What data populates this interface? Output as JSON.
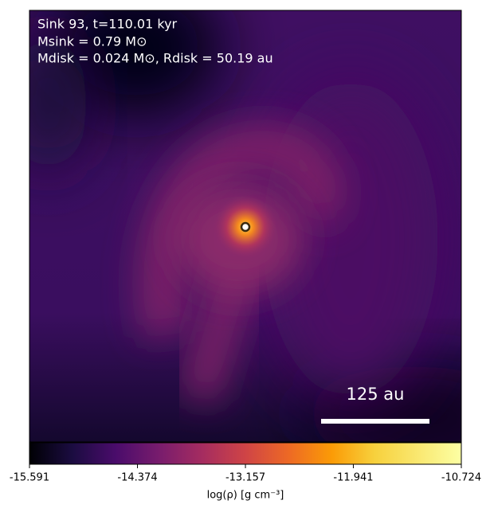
{
  "chart_data": {
    "type": "density-map",
    "title_lines": [
      "Sink 93, t=110.01 kyr",
      "Msink = 0.79 M⊙",
      "Mdisk = 0.024 M⊙, Rdisk = 50.19 au"
    ],
    "scale_bar_label": "125 au",
    "colorbar": {
      "label": "log(ρ) [g cm⁻³]",
      "clim": [
        -15.591,
        -10.724
      ],
      "ticks": [
        -15.591,
        -14.374,
        -13.157,
        -11.941,
        -10.724
      ]
    }
  }
}
